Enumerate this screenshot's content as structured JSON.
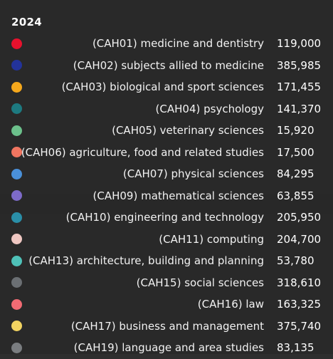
{
  "tooltip": {
    "title": "2024",
    "rows": [
      {
        "label": "(CAH01) medicine and dentistry",
        "value": "119,000",
        "color": "#e8112d"
      },
      {
        "label": "(CAH02) subjects allied to medicine",
        "value": "385,985",
        "color": "#23339a"
      },
      {
        "label": "(CAH03) biological and sport sciences",
        "value": "171,455",
        "color": "#f5a81c"
      },
      {
        "label": "(CAH04) psychology",
        "value": "141,370",
        "color": "#1d7a80"
      },
      {
        "label": "(CAH05) veterinary sciences",
        "value": "15,920",
        "color": "#6cc08b"
      },
      {
        "label": "(CAH06) agriculture, food and related studies",
        "value": "17,500",
        "color": "#f07560"
      },
      {
        "label": "(CAH07) physical sciences",
        "value": "84,295",
        "color": "#4a90d9"
      },
      {
        "label": "(CAH09) mathematical sciences",
        "value": "63,855",
        "color": "#7e6bc9"
      },
      {
        "label": "(CAH10) engineering and technology",
        "value": "205,950",
        "color": "#2a8fa8"
      },
      {
        "label": "(CAH11) computing",
        "value": "204,700",
        "color": "#efc7c2"
      },
      {
        "label": "(CAH13) architecture, building and planning",
        "value": "53,780",
        "color": "#4fc1b8"
      },
      {
        "label": "(CAH15) social sciences",
        "value": "318,610",
        "color": "#6b6f73"
      },
      {
        "label": "(CAH16) law",
        "value": "163,325",
        "color": "#f26b73"
      },
      {
        "label": "(CAH17) business and management",
        "value": "375,740",
        "color": "#f2d361"
      },
      {
        "label": "(CAH19) language and area studies",
        "value": "83,135",
        "color": "#7a7d80"
      }
    ]
  }
}
